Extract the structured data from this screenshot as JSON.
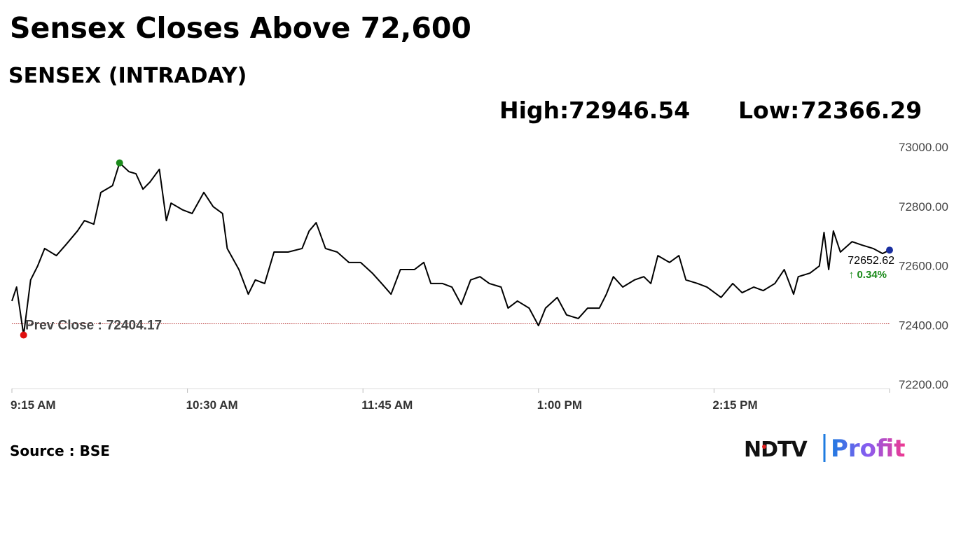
{
  "chart_data": {
    "type": "line",
    "title": "Sensex Closes Above 72,600",
    "subtitle": "SENSEX (INTRADAY)",
    "high_label": "High:",
    "high": 72946.54,
    "low_label": "Low:",
    "low": 72366.29,
    "prev_close_label": "Prev Close :",
    "prev_close": 72404.17,
    "close": 72652.62,
    "change": {
      "value": 0.34,
      "label": "↑ 0.34%"
    },
    "color": "#000000",
    "x": [
      555,
      557,
      560,
      563,
      566,
      569,
      574,
      578,
      583,
      586,
      590,
      593,
      598,
      601,
      605,
      608,
      611,
      614,
      618,
      621,
      623,
      628,
      632,
      637,
      641,
      645,
      647,
      652,
      656,
      659,
      663,
      667,
      673,
      679,
      682,
      685,
      689,
      694,
      699,
      704,
      709,
      713,
      717,
      721,
      727,
      731,
      734,
      739,
      743,
      747,
      751,
      755,
      759,
      764,
      767,
      771,
      776,
      780,
      783,
      788,
      792,
      797,
      801,
      806,
      809,
      812,
      816,
      821,
      825,
      828,
      831,
      836,
      840,
      843,
      848,
      852,
      858,
      863,
      867,
      872,
      876,
      881,
      885,
      889,
      891,
      896,
      900,
      902,
      904,
      906,
      909,
      914,
      918,
      923,
      927,
      930
    ],
    "values": [
      72481,
      72528,
      72366.29,
      72552,
      72599,
      72658,
      72634,
      72670,
      72717,
      72752,
      72740,
      72847,
      72870,
      72946.54,
      72917,
      72910,
      72858,
      72882,
      72925,
      72752,
      72811,
      72788,
      72776,
      72847,
      72799,
      72776,
      72658,
      72587,
      72504,
      72552,
      72540,
      72646,
      72646,
      72658,
      72717,
      72745,
      72658,
      72646,
      72611,
      72611,
      72575,
      72540,
      72504,
      72587,
      72587,
      72611,
      72540,
      72540,
      72528,
      72469,
      72552,
      72563,
      72540,
      72528,
      72457,
      72481,
      72457,
      72398,
      72457,
      72493,
      72434,
      72422,
      72457,
      72457,
      72504,
      72563,
      72528,
      72552,
      72563,
      72540,
      72634,
      72611,
      72634,
      72552,
      72540,
      72528,
      72493,
      72540,
      72509,
      72528,
      72516,
      72540,
      72587,
      72504,
      72563,
      72575,
      72599,
      72712,
      72587,
      72717,
      72646,
      72681,
      72670,
      72658,
      72641,
      72652.62
    ],
    "xlim": [
      555,
      930
    ],
    "xticks": [
      {
        "value": 555,
        "label": "9:15 AM"
      },
      {
        "value": 630,
        "label": "10:30 AM"
      },
      {
        "value": 705,
        "label": "11:45 AM"
      },
      {
        "value": 780,
        "label": "1:00 PM"
      },
      {
        "value": 855,
        "label": "2:15 PM"
      }
    ],
    "ylim": [
      72200,
      73000
    ],
    "yticks": [
      {
        "value": 72200,
        "label": "72200.00"
      },
      {
        "value": 72400,
        "label": "72400.00"
      },
      {
        "value": 72600,
        "label": "72600.00"
      },
      {
        "value": 72800,
        "label": "72800.00"
      },
      {
        "value": 73000,
        "label": "73000.00"
      }
    ],
    "source": "Source : BSE",
    "brand": [
      "NDTV",
      "Profit"
    ]
  }
}
